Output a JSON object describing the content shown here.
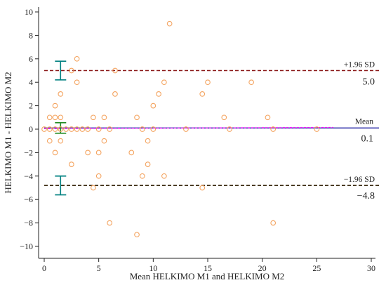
{
  "chart_data": {
    "type": "scatter",
    "subtype": "bland-altman",
    "xlabel": "Mean HELKIMO M1 and HELKIMO M2",
    "ylabel": "HELKIMO M1 - HELKIMO M2",
    "xlim": [
      0,
      30
    ],
    "ylim": [
      -10,
      10
    ],
    "xticks": [
      0,
      5,
      10,
      15,
      20,
      25,
      30
    ],
    "yticks": [
      -10,
      -8,
      -6,
      -4,
      -2,
      0,
      2,
      4,
      6,
      8,
      10
    ],
    "grid": false,
    "point_color": "#f4a460",
    "points": [
      {
        "x": 0,
        "y": 0
      },
      {
        "x": 0.5,
        "y": 0
      },
      {
        "x": 0.5,
        "y": 1
      },
      {
        "x": 0.5,
        "y": -1
      },
      {
        "x": 1,
        "y": 0
      },
      {
        "x": 1,
        "y": 2
      },
      {
        "x": 1,
        "y": -2
      },
      {
        "x": 1,
        "y": 1
      },
      {
        "x": 1.5,
        "y": 0
      },
      {
        "x": 1.5,
        "y": 1
      },
      {
        "x": 1.5,
        "y": -1
      },
      {
        "x": 1.5,
        "y": 3
      },
      {
        "x": 2,
        "y": 0
      },
      {
        "x": 2.5,
        "y": 5
      },
      {
        "x": 2.5,
        "y": -3
      },
      {
        "x": 2.5,
        "y": 0
      },
      {
        "x": 3,
        "y": 6
      },
      {
        "x": 3,
        "y": 4
      },
      {
        "x": 3,
        "y": 0
      },
      {
        "x": 3.5,
        "y": 0
      },
      {
        "x": 4,
        "y": -2
      },
      {
        "x": 4,
        "y": 0
      },
      {
        "x": 4.5,
        "y": 1
      },
      {
        "x": 4.5,
        "y": -5
      },
      {
        "x": 5,
        "y": 0
      },
      {
        "x": 5,
        "y": -2
      },
      {
        "x": 5,
        "y": -4
      },
      {
        "x": 5.5,
        "y": 1
      },
      {
        "x": 5.5,
        "y": -1
      },
      {
        "x": 6,
        "y": 0
      },
      {
        "x": 6,
        "y": -8
      },
      {
        "x": 6.5,
        "y": 5
      },
      {
        "x": 6.5,
        "y": 3
      },
      {
        "x": 8,
        "y": -2
      },
      {
        "x": 8.5,
        "y": 1
      },
      {
        "x": 8.5,
        "y": -9
      },
      {
        "x": 9,
        "y": 0
      },
      {
        "x": 9,
        "y": -4
      },
      {
        "x": 9.5,
        "y": -1
      },
      {
        "x": 9.5,
        "y": -3
      },
      {
        "x": 10,
        "y": 2
      },
      {
        "x": 10,
        "y": 0
      },
      {
        "x": 10.5,
        "y": 3
      },
      {
        "x": 11,
        "y": 4
      },
      {
        "x": 11,
        "y": -4
      },
      {
        "x": 11.5,
        "y": 9
      },
      {
        "x": 13,
        "y": 0
      },
      {
        "x": 14.5,
        "y": 3
      },
      {
        "x": 14.5,
        "y": -5
      },
      {
        "x": 15,
        "y": 4
      },
      {
        "x": 16.5,
        "y": 1
      },
      {
        "x": 17,
        "y": 0
      },
      {
        "x": 19,
        "y": 4
      },
      {
        "x": 20.5,
        "y": 1
      },
      {
        "x": 21,
        "y": 0
      },
      {
        "x": 21,
        "y": -8
      },
      {
        "x": 25,
        "y": 0
      }
    ],
    "mean_line": {
      "value": 0.1,
      "label": "Mean",
      "value_label": "0.1",
      "color": "#1a1aa0"
    },
    "upper_loa": {
      "value": 5.0,
      "label": "+1.96 SD",
      "value_label": "5.0",
      "color": "#8b1a1a"
    },
    "lower_loa": {
      "value": -4.8,
      "label": "−1.96 SD",
      "value_label": "−4.8",
      "color": "#3a2a10"
    },
    "regression_line": {
      "x": [
        0,
        26.5
      ],
      "y": [
        0.05,
        0.15
      ],
      "color": "#ff00ff"
    },
    "confidence_intervals": [
      {
        "x": 1.5,
        "low": 4.2,
        "high": 5.8,
        "color": "#008080"
      },
      {
        "x": 1.5,
        "low": -0.35,
        "high": 0.55,
        "color": "#228b22"
      },
      {
        "x": 1.5,
        "low": -5.6,
        "high": -4.0,
        "color": "#008080"
      }
    ]
  }
}
